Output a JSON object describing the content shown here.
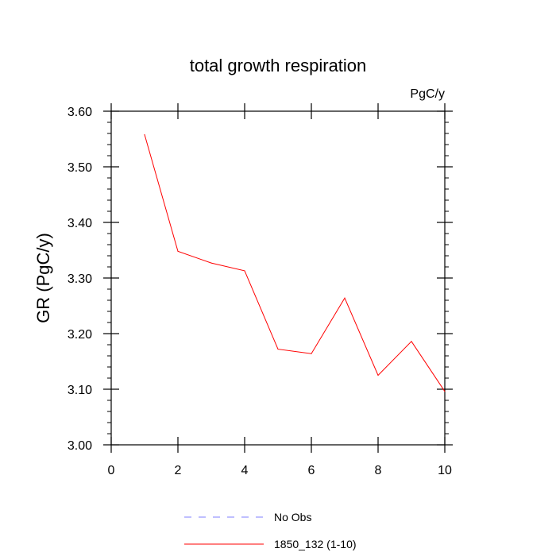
{
  "chart_data": {
    "type": "line",
    "title": "total growth respiration",
    "units": "PgC/y",
    "xlabel": "",
    "ylabel": "GR  (PgC/y)",
    "xlim": [
      0,
      10
    ],
    "ylim": [
      3.0,
      3.6
    ],
    "x_ticks": [
      "0",
      "2",
      "4",
      "6",
      "8",
      "10"
    ],
    "y_ticks": [
      "3.00",
      "3.10",
      "3.20",
      "3.30",
      "3.40",
      "3.50",
      "3.60"
    ],
    "grid": false,
    "legend_position": "bottom",
    "series": [
      {
        "name": "1850_132 (1-10)",
        "color": "#ff0000",
        "style": "solid",
        "x": [
          1,
          2,
          3,
          4,
          5,
          6,
          7,
          8,
          9,
          10
        ],
        "values": [
          3.558,
          3.348,
          3.327,
          3.313,
          3.172,
          3.164,
          3.264,
          3.125,
          3.186,
          3.096
        ]
      }
    ],
    "legend": [
      {
        "label": "No Obs",
        "color": "#7f7fff",
        "style": "dashed"
      },
      {
        "label": "1850_132 (1-10)",
        "color": "#ff0000",
        "style": "solid"
      }
    ]
  }
}
